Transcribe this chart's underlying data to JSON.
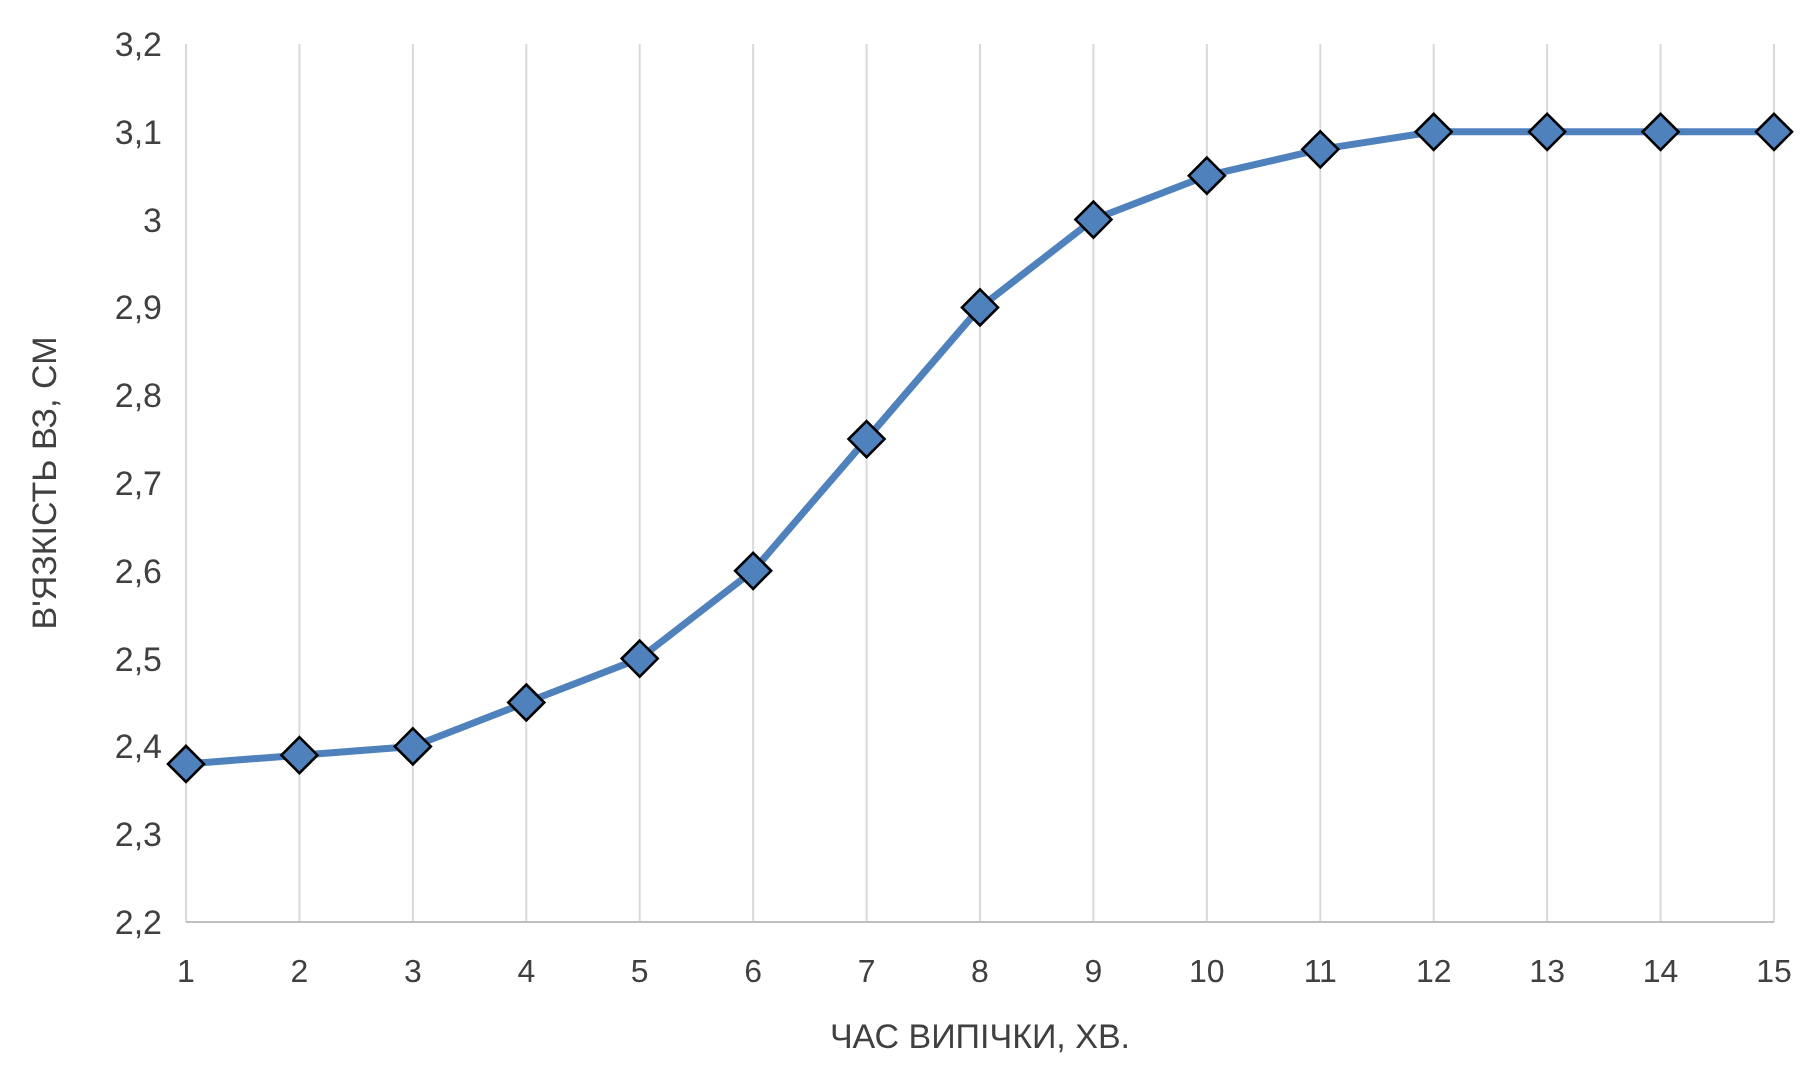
{
  "chart_data": {
    "type": "line",
    "xlabel": "ЧАС ВИПІЧКИ, ХВ.",
    "ylabel": "В'ЯЗКІСТЬ ВЗ, СМ",
    "x": [
      1,
      2,
      3,
      4,
      5,
      6,
      7,
      8,
      9,
      10,
      11,
      12,
      13,
      14,
      15
    ],
    "series": [
      {
        "color": "#4f81bd",
        "values": [
          2.38,
          2.39,
          2.4,
          2.45,
          2.5,
          2.6,
          2.75,
          2.9,
          3.0,
          3.05,
          3.08,
          3.1,
          3.1,
          3.1,
          3.1
        ]
      }
    ],
    "xlim": [
      1,
      15
    ],
    "xticks": [
      1,
      2,
      3,
      4,
      5,
      6,
      7,
      8,
      9,
      10,
      11,
      12,
      13,
      14,
      15
    ],
    "ylim": [
      2.2,
      3.2
    ],
    "yticks": [
      {
        "value": 2.2,
        "label": "2,2"
      },
      {
        "value": 2.3,
        "label": "2,3"
      },
      {
        "value": 2.4,
        "label": "2,4"
      },
      {
        "value": 2.5,
        "label": "2,5"
      },
      {
        "value": 2.6,
        "label": "2,6"
      },
      {
        "value": 2.7,
        "label": "2,7"
      },
      {
        "value": 2.8,
        "label": "2,8"
      },
      {
        "value": 2.9,
        "label": "2,9"
      },
      3,
      {
        "value": 3.1,
        "label": "3,1"
      },
      {
        "value": 3.2,
        "label": "3,2"
      }
    ],
    "grid": "x",
    "marker": "diamond",
    "line_style": "solid"
  }
}
